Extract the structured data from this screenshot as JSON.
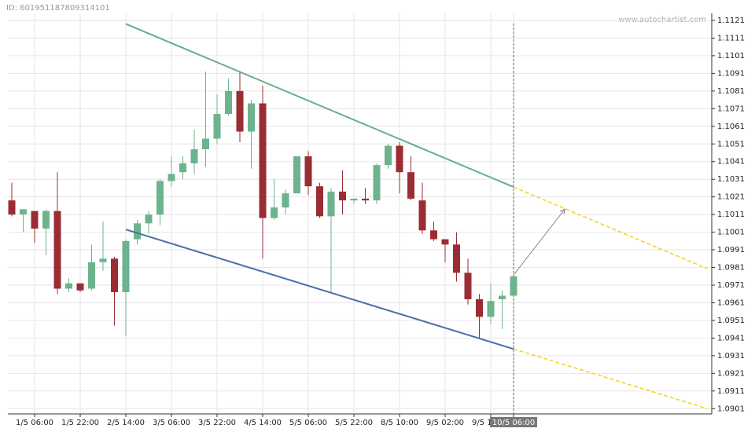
{
  "chart_data": {
    "type": "candlestick",
    "id_label": "ID: 601951187809314101",
    "watermark": "www.autochartist.com",
    "categories": [
      null,
      null,
      "1/5 06:00",
      null,
      null,
      null,
      "1/5 22:00",
      null,
      null,
      null,
      "2/5 14:00",
      null,
      null,
      null,
      "3/5 06:00",
      null,
      null,
      null,
      "3/5 22:00",
      null,
      null,
      null,
      "4/5 14:00",
      null,
      null,
      null,
      "5/5 06:00",
      null,
      null,
      null,
      "5/5 22:00",
      null,
      null,
      null,
      "8/5 10:00",
      null,
      null,
      null,
      "9/5 02:00",
      null,
      null,
      null,
      "9/5 18:00",
      null,
      "10/5 06:00"
    ],
    "open": [
      1.1019,
      1.1011,
      1.1013,
      1.1003,
      1.1013,
      1.0969,
      1.0972,
      1.0969,
      1.0984,
      1.0986,
      1.0967,
      1.0997,
      1.1006,
      1.1011,
      1.103,
      1.1035,
      1.104,
      1.1048,
      1.1054,
      1.1068,
      1.1081,
      1.1058,
      1.1074,
      1.1009,
      1.1015,
      1.1023,
      1.1044,
      1.1027,
      1.101,
      1.1024,
      1.1019,
      1.102,
      1.1019,
      1.1039,
      1.105,
      1.1035,
      1.1019,
      1.1002,
      1.0997,
      1.0994,
      1.0978,
      1.0963,
      1.0953,
      1.0963,
      1.0965
    ],
    "high": [
      1.1029,
      1.1014,
      1.1013,
      1.1014,
      1.1035,
      1.0975,
      1.0972,
      1.0994,
      1.1007,
      1.0987,
      1.0997,
      1.1008,
      1.1013,
      1.1031,
      1.1044,
      1.1044,
      1.1059,
      1.1092,
      1.1079,
      1.1088,
      1.1092,
      1.1076,
      1.1084,
      1.1031,
      1.1025,
      1.1044,
      1.1047,
      1.1029,
      1.1026,
      1.1036,
      1.102,
      1.1026,
      1.104,
      1.1051,
      1.1052,
      1.1044,
      1.1029,
      1.1007,
      1.0997,
      1.1001,
      1.0986,
      1.0966,
      1.0972,
      1.0968,
      1.0976
    ],
    "low": [
      1.101,
      1.1001,
      1.0995,
      1.0988,
      1.0966,
      1.0967,
      1.0967,
      1.0968,
      1.0979,
      1.0948,
      1.0942,
      1.0994,
      1.1,
      1.1005,
      1.1027,
      1.1031,
      1.1034,
      1.1038,
      1.1051,
      1.1067,
      1.1052,
      1.1037,
      1.0986,
      1.1008,
      1.1011,
      1.1023,
      1.1022,
      1.1009,
      1.0967,
      1.1011,
      1.1017,
      1.1017,
      1.1017,
      1.1037,
      1.1023,
      1.1019,
      1.1,
      1.0996,
      1.0984,
      1.0973,
      1.096,
      1.0941,
      1.0949,
      1.0946,
      1.0965
    ],
    "close": [
      1.1011,
      1.1014,
      1.1003,
      1.1013,
      1.0969,
      1.0972,
      1.0968,
      1.0984,
      1.0986,
      1.0967,
      1.0996,
      1.1006,
      1.1011,
      1.103,
      1.1034,
      1.104,
      1.1048,
      1.1054,
      1.1068,
      1.1081,
      1.1058,
      1.1074,
      1.1009,
      1.1015,
      1.1023,
      1.1044,
      1.1027,
      1.101,
      1.1024,
      1.1019,
      1.102,
      1.1019,
      1.1039,
      1.105,
      1.1035,
      1.102,
      1.1002,
      1.0997,
      1.0994,
      1.0978,
      1.0963,
      1.0953,
      1.0962,
      1.0965,
      1.0976
    ],
    "up_color": "#6cb38e",
    "down_color": "#9a2d33",
    "upper_line": {
      "color": "#6aae8c",
      "x": [
        10,
        44
      ],
      "y": [
        1.1119,
        1.10266
      ]
    },
    "upper_projection": {
      "color": "#f2d21b",
      "x": [
        44,
        61
      ],
      "y": [
        1.10266,
        1.09803
      ]
    },
    "lower_line": {
      "color": "#4a70a8",
      "x": [
        10,
        44
      ],
      "y": [
        1.10025,
        1.09348
      ]
    },
    "lower_projection": {
      "color": "#f2d21b",
      "x": [
        44,
        61
      ],
      "y": [
        1.09348,
        1.0901
      ]
    },
    "arrow": {
      "color": "#888888",
      "x": [
        44,
        48.5
      ],
      "y": [
        1.09767,
        1.10141
      ]
    },
    "ylim": [
      1.0898,
      1.1125
    ],
    "yticks": [
      1.0901,
      1.0911,
      1.0921,
      1.0931,
      1.0941,
      1.0951,
      1.0961,
      1.0971,
      1.0981,
      1.0991,
      1.1001,
      1.1011,
      1.1021,
      1.1031,
      1.1041,
      1.1051,
      1.1061,
      1.1071,
      1.1081,
      1.1091,
      1.1101,
      1.1111,
      1.1121
    ],
    "grid": true
  }
}
